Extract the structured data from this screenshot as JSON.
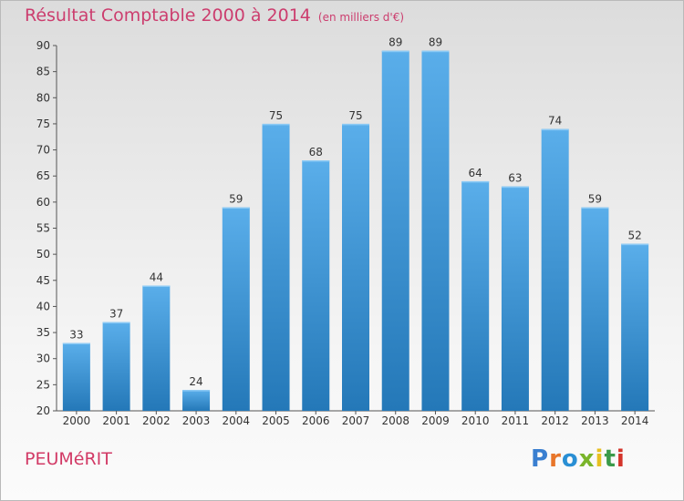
{
  "header": {
    "title": "Résultat Comptable 2000 à 2014",
    "unit": "(en milliers d'€)"
  },
  "footer": {
    "commune": "PEUMéRIT",
    "logo": "Proxiti"
  },
  "colors": {
    "bar_top": "#5aaeea",
    "bar_bottom": "#2478b8",
    "title": "#cc3d6e",
    "logo": [
      "#3a7fd0",
      "#e8762a",
      "#2a8fd4",
      "#7ab52a",
      "#e8c020",
      "#3a9a4a",
      "#d4342a"
    ]
  },
  "chart_data": {
    "type": "bar",
    "title": "Résultat Comptable 2000 à 2014",
    "ylabel": "(en milliers d'€)",
    "xlabel": "",
    "categories": [
      "2000",
      "2001",
      "2002",
      "2003",
      "2004",
      "2005",
      "2006",
      "2007",
      "2008",
      "2009",
      "2010",
      "2011",
      "2012",
      "2013",
      "2014"
    ],
    "values": [
      33,
      37,
      44,
      24,
      59,
      75,
      68,
      75,
      89,
      89,
      64,
      63,
      74,
      59,
      52
    ],
    "ylim": [
      20,
      90
    ],
    "yticks": [
      20,
      25,
      30,
      35,
      40,
      45,
      50,
      55,
      60,
      65,
      70,
      75,
      80,
      85,
      90
    ],
    "grid": false,
    "data_labels": true
  }
}
